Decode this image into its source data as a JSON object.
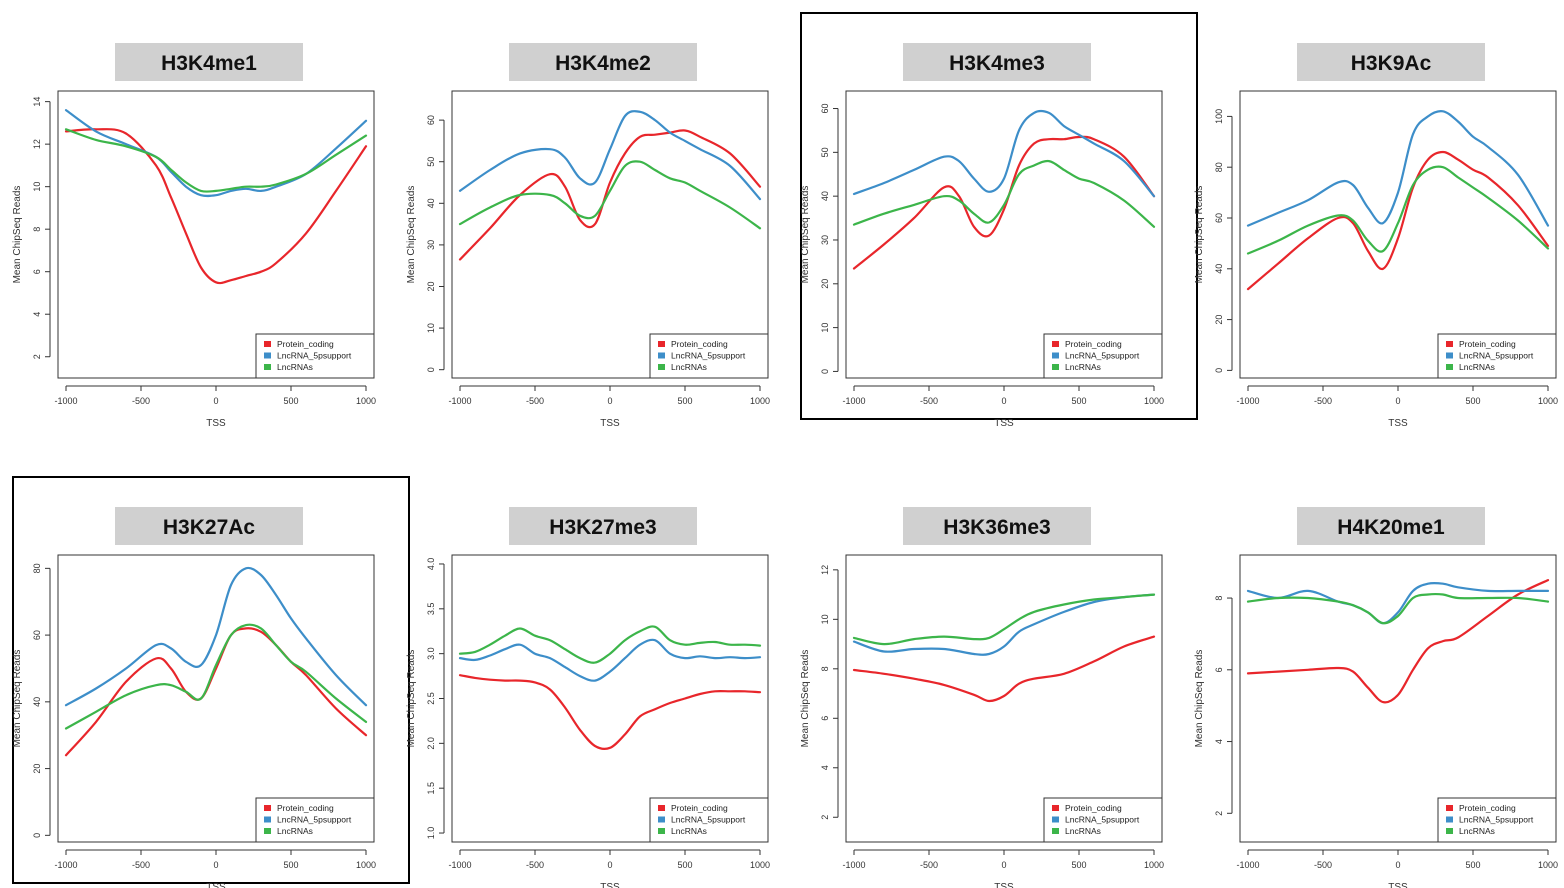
{
  "colors": {
    "protein_coding": "#e8262b",
    "lncrna_5psupport": "#3d8ec9",
    "lncrnas": "#3cb54a",
    "title_box": "#d0d0d0",
    "highlight_frame": "#000000"
  },
  "legend_labels": [
    "Protein_coding",
    "LncRNA_5psupport",
    "LncRNAs"
  ],
  "highlighted": [
    "H3K4me3",
    "H3K27Ac"
  ],
  "chart_data": [
    {
      "type": "line",
      "title": "H3K4me1",
      "xlabel": "TSS",
      "ylabel": "Mean ChipSeq Reads",
      "xlim": [
        -1000,
        1000
      ],
      "ylim": [
        1,
        14.5
      ],
      "yticks": [
        2,
        4,
        6,
        8,
        10,
        12,
        14
      ],
      "xticks": [
        -1000,
        -500,
        0,
        500,
        1000
      ],
      "legend": "bottom-right",
      "x": [
        -1000,
        -800,
        -600,
        -400,
        -300,
        -200,
        -100,
        0,
        100,
        200,
        300,
        400,
        600,
        800,
        1000
      ],
      "series": [
        {
          "name": "Protein_coding",
          "values": [
            12.6,
            12.7,
            12.5,
            11.0,
            9.5,
            7.8,
            6.2,
            5.5,
            5.6,
            5.8,
            6.0,
            6.4,
            7.8,
            9.8,
            11.9
          ]
        },
        {
          "name": "LncRNA_5psupport",
          "values": [
            13.6,
            12.6,
            12.0,
            11.4,
            10.7,
            10.0,
            9.6,
            9.6,
            9.8,
            9.9,
            9.8,
            10.0,
            10.6,
            11.8,
            13.1
          ]
        },
        {
          "name": "LncRNAs",
          "values": [
            12.7,
            12.2,
            11.9,
            11.4,
            10.8,
            10.2,
            9.8,
            9.8,
            9.9,
            10.0,
            10.0,
            10.1,
            10.6,
            11.5,
            12.4
          ]
        }
      ]
    },
    {
      "type": "line",
      "title": "H3K4me2",
      "xlabel": "TSS",
      "ylabel": "Mean ChipSeq Reads",
      "xlim": [
        -1000,
        1000
      ],
      "ylim": [
        -2,
        67
      ],
      "yticks": [
        0,
        10,
        20,
        30,
        40,
        50,
        60
      ],
      "xticks": [
        -1000,
        -500,
        0,
        500,
        1000
      ],
      "legend": "bottom-right",
      "x": [
        -1000,
        -800,
        -600,
        -400,
        -300,
        -200,
        -100,
        0,
        100,
        200,
        300,
        400,
        500,
        600,
        800,
        1000
      ],
      "series": [
        {
          "name": "Protein_coding",
          "values": [
            26.5,
            34,
            42,
            47,
            44,
            36,
            35,
            45,
            52,
            56,
            56.5,
            57,
            57.5,
            56,
            52,
            44
          ]
        },
        {
          "name": "LncRNA_5psupport",
          "values": [
            43,
            48,
            52,
            53,
            51,
            46,
            45,
            53,
            61,
            62,
            60,
            57,
            55,
            53,
            49,
            41
          ]
        },
        {
          "name": "LncRNAs",
          "values": [
            35,
            39,
            42,
            42,
            40,
            37,
            37,
            43,
            49,
            50,
            48,
            46,
            45,
            43,
            39,
            34
          ]
        }
      ]
    },
    {
      "type": "line",
      "title": "H3K4me3",
      "xlabel": "TSS",
      "ylabel": "Mean ChipSeq Reads",
      "xlim": [
        -1000,
        1000
      ],
      "ylim": [
        -1.5,
        64
      ],
      "yticks": [
        0,
        10,
        20,
        30,
        40,
        50,
        60
      ],
      "xticks": [
        -1000,
        -500,
        0,
        500,
        1000
      ],
      "legend": "bottom-right",
      "x": [
        -1000,
        -800,
        -600,
        -400,
        -300,
        -200,
        -100,
        0,
        100,
        200,
        300,
        400,
        500,
        600,
        800,
        1000
      ],
      "series": [
        {
          "name": "Protein_coding",
          "values": [
            23.5,
            29,
            35,
            42,
            40,
            33,
            31,
            37,
            47,
            52,
            53,
            53,
            53.5,
            53,
            49,
            40
          ]
        },
        {
          "name": "LncRNA_5psupport",
          "values": [
            40.5,
            43,
            46,
            49,
            48,
            44,
            41,
            44,
            55,
            59,
            59,
            56,
            54,
            52,
            48,
            40
          ]
        },
        {
          "name": "LncRNAs",
          "values": [
            33.5,
            36,
            38,
            40,
            39,
            36,
            34,
            38,
            45,
            47,
            48,
            46,
            44,
            43,
            39,
            33
          ]
        }
      ]
    },
    {
      "type": "line",
      "title": "H3K9Ac",
      "xlabel": "TSS",
      "ylabel": "Mean ChipSeq Reads",
      "xlim": [
        -1000,
        1000
      ],
      "ylim": [
        -3,
        110
      ],
      "yticks": [
        0,
        20,
        40,
        60,
        80,
        100
      ],
      "xticks": [
        -1000,
        -500,
        0,
        500,
        1000
      ],
      "legend": "bottom-right",
      "x": [
        -1000,
        -800,
        -600,
        -400,
        -300,
        -200,
        -100,
        0,
        100,
        200,
        300,
        400,
        500,
        600,
        800,
        1000
      ],
      "series": [
        {
          "name": "Protein_coding",
          "values": [
            32,
            42,
            52,
            60,
            58,
            47,
            40,
            52,
            72,
            83,
            86,
            83,
            79,
            76,
            65,
            49
          ]
        },
        {
          "name": "LncRNA_5psupport",
          "values": [
            57,
            62,
            67,
            74,
            73,
            64,
            58,
            70,
            93,
            100,
            102,
            98,
            92,
            88,
            77,
            57
          ]
        },
        {
          "name": "LncRNAs",
          "values": [
            46,
            51,
            57,
            61,
            59,
            51,
            47,
            58,
            73,
            79,
            80,
            76,
            72,
            68,
            59,
            48
          ]
        }
      ]
    },
    {
      "type": "line",
      "title": "H3K27Ac",
      "xlabel": "TSS",
      "ylabel": "Mean ChipSeq Reads",
      "xlim": [
        -1000,
        1000
      ],
      "ylim": [
        -2,
        84
      ],
      "yticks": [
        0,
        20,
        40,
        60,
        80
      ],
      "xticks": [
        -1000,
        -500,
        0,
        500,
        1000
      ],
      "legend": "bottom-right",
      "x": [
        -1000,
        -800,
        -600,
        -400,
        -300,
        -200,
        -100,
        0,
        100,
        200,
        300,
        400,
        500,
        600,
        800,
        1000
      ],
      "series": [
        {
          "name": "Protein_coding",
          "values": [
            24,
            34,
            46,
            53,
            50,
            43,
            41,
            50,
            60,
            62,
            61,
            57,
            52,
            48,
            38,
            30
          ]
        },
        {
          "name": "LncRNA_5psupport",
          "values": [
            39,
            44,
            50,
            57,
            56,
            52,
            51,
            60,
            75,
            80,
            78,
            72,
            65,
            59,
            48,
            39
          ]
        },
        {
          "name": "LncRNAs",
          "values": [
            32,
            37,
            42,
            45,
            45,
            43,
            41,
            51,
            60,
            63,
            62,
            57,
            52,
            49,
            41,
            34
          ]
        }
      ]
    },
    {
      "type": "line",
      "title": "H3K27me3",
      "xlabel": "TSS",
      "ylabel": "Mean ChipSeq Reads",
      "xlim": [
        -1000,
        1000
      ],
      "ylim": [
        0.9,
        4.1
      ],
      "yticks": [
        1.0,
        1.5,
        2.0,
        2.5,
        3.0,
        3.5,
        4.0
      ],
      "xticks": [
        -1000,
        -500,
        0,
        500,
        1000
      ],
      "legend": "bottom-right",
      "x": [
        -1000,
        -900,
        -800,
        -700,
        -600,
        -500,
        -400,
        -300,
        -200,
        -100,
        0,
        100,
        200,
        300,
        400,
        500,
        600,
        700,
        800,
        900,
        1000
      ],
      "series": [
        {
          "name": "Protein_coding",
          "values": [
            2.76,
            2.73,
            2.71,
            2.7,
            2.7,
            2.68,
            2.6,
            2.4,
            2.15,
            1.97,
            1.95,
            2.1,
            2.3,
            2.38,
            2.45,
            2.5,
            2.55,
            2.58,
            2.58,
            2.58,
            2.57
          ]
        },
        {
          "name": "LncRNA_5psupport",
          "values": [
            2.95,
            2.93,
            2.98,
            3.05,
            3.1,
            3.0,
            2.95,
            2.85,
            2.75,
            2.7,
            2.8,
            2.95,
            3.1,
            3.15,
            3.0,
            2.95,
            2.97,
            2.95,
            2.96,
            2.95,
            2.96
          ]
        },
        {
          "name": "LncRNAs",
          "values": [
            3.0,
            3.02,
            3.1,
            3.2,
            3.28,
            3.2,
            3.15,
            3.05,
            2.95,
            2.9,
            3.0,
            3.15,
            3.25,
            3.3,
            3.15,
            3.1,
            3.12,
            3.13,
            3.1,
            3.1,
            3.09
          ]
        }
      ]
    },
    {
      "type": "line",
      "title": "H3K36me3",
      "xlabel": "TSS",
      "ylabel": "Mean ChipSeq Reads",
      "xlim": [
        -1000,
        1000
      ],
      "ylim": [
        1,
        12.6
      ],
      "yticks": [
        2,
        4,
        6,
        8,
        10,
        12
      ],
      "xticks": [
        -1000,
        -500,
        0,
        500,
        1000
      ],
      "legend": "bottom-right",
      "x": [
        -1000,
        -800,
        -600,
        -400,
        -200,
        -100,
        0,
        100,
        200,
        400,
        600,
        800,
        1000
      ],
      "series": [
        {
          "name": "Protein_coding",
          "values": [
            7.95,
            7.8,
            7.6,
            7.35,
            6.95,
            6.7,
            6.9,
            7.4,
            7.6,
            7.8,
            8.3,
            8.9,
            9.3
          ]
        },
        {
          "name": "LncRNA_5psupport",
          "values": [
            9.1,
            8.7,
            8.8,
            8.8,
            8.6,
            8.6,
            8.9,
            9.5,
            9.8,
            10.3,
            10.7,
            10.9,
            11.0
          ]
        },
        {
          "name": "LncRNAs",
          "values": [
            9.25,
            9.0,
            9.2,
            9.3,
            9.2,
            9.25,
            9.6,
            10.0,
            10.3,
            10.6,
            10.8,
            10.9,
            11.0
          ]
        }
      ]
    },
    {
      "type": "line",
      "title": "H4K20me1",
      "xlabel": "TSS",
      "ylabel": "Mean ChipSeq Reads",
      "xlim": [
        -1000,
        1000
      ],
      "ylim": [
        1.2,
        9.2
      ],
      "yticks": [
        2,
        4,
        6,
        8
      ],
      "xticks": [
        -1000,
        -500,
        0,
        500,
        1000
      ],
      "legend": "bottom-right",
      "x": [
        -1000,
        -800,
        -600,
        -400,
        -300,
        -200,
        -100,
        0,
        100,
        200,
        300,
        400,
        600,
        800,
        1000
      ],
      "series": [
        {
          "name": "Protein_coding",
          "values": [
            5.9,
            5.95,
            6.0,
            6.05,
            5.95,
            5.5,
            5.1,
            5.3,
            6.0,
            6.6,
            6.8,
            6.9,
            7.5,
            8.1,
            8.5
          ]
        },
        {
          "name": "LncRNA_5psupport",
          "values": [
            8.2,
            8.0,
            8.2,
            7.9,
            7.8,
            7.6,
            7.3,
            7.6,
            8.2,
            8.4,
            8.4,
            8.3,
            8.2,
            8.2,
            8.2
          ]
        },
        {
          "name": "LncRNAs",
          "values": [
            7.9,
            8.0,
            8.0,
            7.9,
            7.8,
            7.6,
            7.3,
            7.5,
            8.0,
            8.1,
            8.1,
            8.0,
            8.0,
            8.0,
            7.9
          ]
        }
      ]
    }
  ]
}
